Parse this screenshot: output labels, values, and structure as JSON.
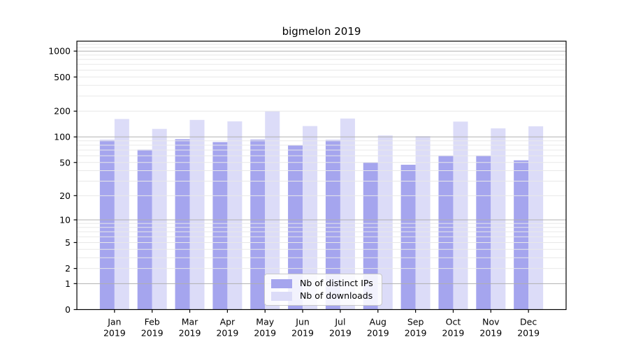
{
  "title": "bigmelon 2019",
  "legend": {
    "items": [
      {
        "label": "Nb of distinct IPs",
        "color": "#a5a5ee"
      },
      {
        "label": "Nb of downloads",
        "color": "#dcdcf8"
      }
    ]
  },
  "chart_data": {
    "type": "bar",
    "title": "bigmelon 2019",
    "categories": [
      "Jan",
      "Feb",
      "Mar",
      "Apr",
      "May",
      "Jun",
      "Jul",
      "Aug",
      "Sep",
      "Oct",
      "Nov",
      "Dec"
    ],
    "category_year": "2019",
    "series": [
      {
        "name": "Nb of distinct IPs",
        "color": "#a5a5ee",
        "values": [
          92,
          71,
          94,
          87,
          93,
          80,
          92,
          50,
          47,
          60,
          60,
          53
        ]
      },
      {
        "name": "Nb of downloads",
        "color": "#dcdcf8",
        "values": [
          162,
          124,
          158,
          152,
          200,
          134,
          164,
          104,
          102,
          151,
          126,
          133
        ]
      }
    ],
    "xlabel": "",
    "ylabel": "",
    "y_scale": "log1p",
    "y_ticks": [
      0,
      1,
      2,
      5,
      10,
      20,
      50,
      100,
      200,
      500,
      1000
    ],
    "ylim": [
      0,
      1340
    ],
    "grid": {
      "major_ticks": [
        1,
        10,
        100,
        1000
      ],
      "major_color": "#b0b0b0",
      "minor_color": "#e8e8e8",
      "grid_on_top": true
    },
    "legend_position": "lower center"
  }
}
